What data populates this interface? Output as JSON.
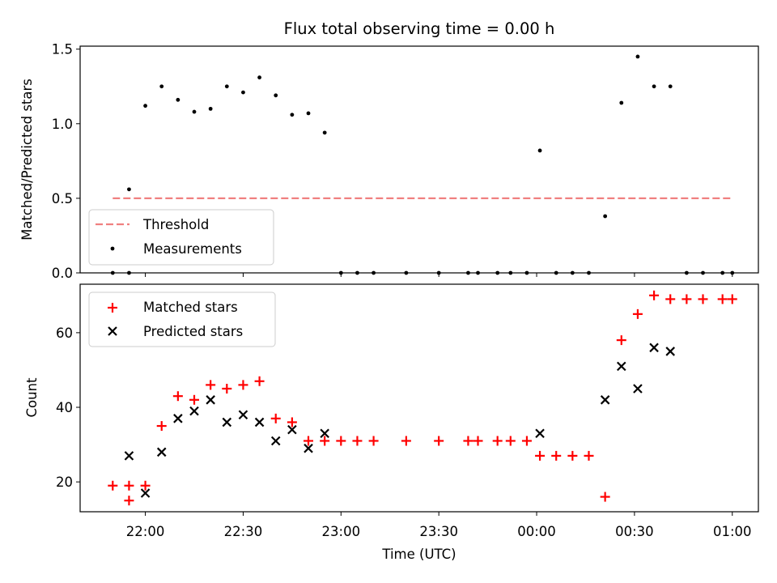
{
  "chart_data": [
    {
      "type": "scatter",
      "title": "Flux total observing time = 0.00 h",
      "xlabel": "",
      "ylabel": "Matched/Predicted stars",
      "ylim": [
        0,
        1.52
      ],
      "yticks": [
        0,
        0.5,
        1.0,
        1.5
      ],
      "ytick_labels": [
        "0.0",
        "0.5",
        "1.0",
        "1.5"
      ],
      "x_time_range": [
        "21:40",
        "01:08"
      ],
      "grid": false,
      "legend_position": "lower-left",
      "threshold": {
        "name": "Threshold",
        "y": 0.5,
        "x_start": "21:50",
        "x_end": "01:00",
        "color": "#f08080",
        "style": "dashed"
      },
      "series": [
        {
          "name": "Measurements",
          "color": "#000000",
          "marker": "dot",
          "points": [
            {
              "x": "21:50",
              "y": 0.0
            },
            {
              "x": "21:55",
              "y": 0.0
            },
            {
              "x": "21:55",
              "y": 0.56
            },
            {
              "x": "22:00",
              "y": 1.12
            },
            {
              "x": "22:05",
              "y": 1.25
            },
            {
              "x": "22:10",
              "y": 1.16
            },
            {
              "x": "22:15",
              "y": 1.08
            },
            {
              "x": "22:20",
              "y": 1.1
            },
            {
              "x": "22:25",
              "y": 1.25
            },
            {
              "x": "22:30",
              "y": 1.21
            },
            {
              "x": "22:35",
              "y": 1.31
            },
            {
              "x": "22:40",
              "y": 1.19
            },
            {
              "x": "22:45",
              "y": 1.06
            },
            {
              "x": "22:50",
              "y": 1.07
            },
            {
              "x": "22:55",
              "y": 0.94
            },
            {
              "x": "23:00",
              "y": 0.0
            },
            {
              "x": "23:05",
              "y": 0.0
            },
            {
              "x": "23:10",
              "y": 0.0
            },
            {
              "x": "23:20",
              "y": 0.0
            },
            {
              "x": "23:30",
              "y": 0.0
            },
            {
              "x": "23:39",
              "y": 0.0
            },
            {
              "x": "23:42",
              "y": 0.0
            },
            {
              "x": "23:48",
              "y": 0.0
            },
            {
              "x": "23:52",
              "y": 0.0
            },
            {
              "x": "23:57",
              "y": 0.0
            },
            {
              "x": "00:01",
              "y": 0.82
            },
            {
              "x": "00:06",
              "y": 0.0
            },
            {
              "x": "00:11",
              "y": 0.0
            },
            {
              "x": "00:16",
              "y": 0.0
            },
            {
              "x": "00:21",
              "y": 0.38
            },
            {
              "x": "00:26",
              "y": 1.14
            },
            {
              "x": "00:31",
              "y": 1.45
            },
            {
              "x": "00:36",
              "y": 1.25
            },
            {
              "x": "00:41",
              "y": 1.25
            },
            {
              "x": "00:46",
              "y": 0.0
            },
            {
              "x": "00:51",
              "y": 0.0
            },
            {
              "x": "00:57",
              "y": 0.0
            },
            {
              "x": "01:00",
              "y": 0.0
            }
          ]
        }
      ]
    },
    {
      "type": "scatter",
      "title": "",
      "xlabel": "Time (UTC)",
      "ylabel": "Count",
      "ylim": [
        12,
        73
      ],
      "yticks": [
        20,
        40,
        60
      ],
      "ytick_labels": [
        "20",
        "40",
        "60"
      ],
      "x_time_range": [
        "21:40",
        "01:08"
      ],
      "xticks": [
        "22:00",
        "22:30",
        "23:00",
        "23:30",
        "00:00",
        "00:30",
        "01:00"
      ],
      "xtick_labels": [
        "22:00",
        "22:30",
        "23:00",
        "23:30",
        "00:00",
        "00:30",
        "01:00"
      ],
      "grid": false,
      "legend_position": "top-left",
      "series": [
        {
          "name": "Matched stars",
          "color": "#ff0000",
          "marker": "plus",
          "points": [
            {
              "x": "21:50",
              "y": 19
            },
            {
              "x": "21:55",
              "y": 19
            },
            {
              "x": "21:55",
              "y": 15
            },
            {
              "x": "22:00",
              "y": 19
            },
            {
              "x": "22:05",
              "y": 35
            },
            {
              "x": "22:10",
              "y": 43
            },
            {
              "x": "22:15",
              "y": 42
            },
            {
              "x": "22:20",
              "y": 46
            },
            {
              "x": "22:25",
              "y": 45
            },
            {
              "x": "22:30",
              "y": 46
            },
            {
              "x": "22:35",
              "y": 47
            },
            {
              "x": "22:40",
              "y": 37
            },
            {
              "x": "22:45",
              "y": 36
            },
            {
              "x": "22:50",
              "y": 31
            },
            {
              "x": "22:55",
              "y": 31
            },
            {
              "x": "23:00",
              "y": 31
            },
            {
              "x": "23:05",
              "y": 31
            },
            {
              "x": "23:10",
              "y": 31
            },
            {
              "x": "23:20",
              "y": 31
            },
            {
              "x": "23:30",
              "y": 31
            },
            {
              "x": "23:39",
              "y": 31
            },
            {
              "x": "23:42",
              "y": 31
            },
            {
              "x": "23:48",
              "y": 31
            },
            {
              "x": "23:52",
              "y": 31
            },
            {
              "x": "23:57",
              "y": 31
            },
            {
              "x": "00:01",
              "y": 27
            },
            {
              "x": "00:06",
              "y": 27
            },
            {
              "x": "00:11",
              "y": 27
            },
            {
              "x": "00:16",
              "y": 27
            },
            {
              "x": "00:21",
              "y": 16
            },
            {
              "x": "00:26",
              "y": 58
            },
            {
              "x": "00:31",
              "y": 65
            },
            {
              "x": "00:36",
              "y": 70
            },
            {
              "x": "00:41",
              "y": 69
            },
            {
              "x": "00:46",
              "y": 69
            },
            {
              "x": "00:51",
              "y": 69
            },
            {
              "x": "00:57",
              "y": 69
            },
            {
              "x": "01:00",
              "y": 69
            }
          ]
        },
        {
          "name": "Predicted stars",
          "color": "#000000",
          "marker": "x",
          "points": [
            {
              "x": "21:55",
              "y": 27
            },
            {
              "x": "22:00",
              "y": 17
            },
            {
              "x": "22:05",
              "y": 28
            },
            {
              "x": "22:10",
              "y": 37
            },
            {
              "x": "22:15",
              "y": 39
            },
            {
              "x": "22:20",
              "y": 42
            },
            {
              "x": "22:25",
              "y": 36
            },
            {
              "x": "22:30",
              "y": 38
            },
            {
              "x": "22:35",
              "y": 36
            },
            {
              "x": "22:40",
              "y": 31
            },
            {
              "x": "22:45",
              "y": 34
            },
            {
              "x": "22:50",
              "y": 29
            },
            {
              "x": "22:55",
              "y": 33
            },
            {
              "x": "00:01",
              "y": 33
            },
            {
              "x": "00:21",
              "y": 42
            },
            {
              "x": "00:26",
              "y": 51
            },
            {
              "x": "00:31",
              "y": 45
            },
            {
              "x": "00:36",
              "y": 56
            },
            {
              "x": "00:41",
              "y": 55
            }
          ]
        }
      ]
    }
  ]
}
